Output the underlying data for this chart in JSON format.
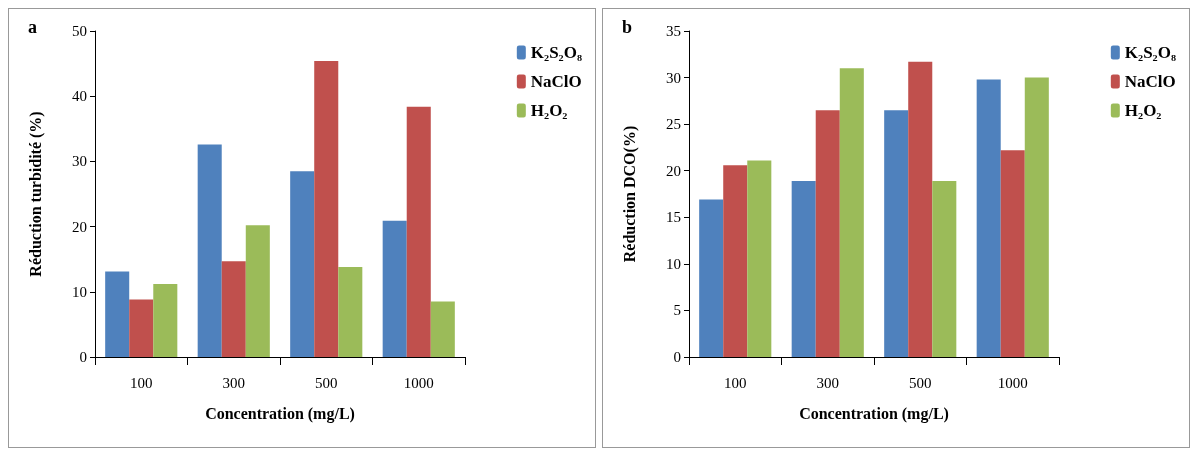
{
  "chart_data": [
    {
      "type": "bar",
      "title": "a",
      "xlabel": "Concentration (mg/L)",
      "ylabel": "Réduction turbidité (%)",
      "categories": [
        "100",
        "300",
        "500",
        "1000"
      ],
      "ylim": [
        0,
        50
      ],
      "yticks": [
        0,
        10,
        20,
        30,
        40,
        50
      ],
      "grid": false,
      "legend": "top right",
      "series": [
        {
          "name": "K₂S₂O₈",
          "color": "#4f81bd",
          "values": [
            13.1,
            32.6,
            28.5,
            20.9
          ]
        },
        {
          "name": "NaClO",
          "color": "#c0504d",
          "values": [
            8.8,
            14.7,
            45.4,
            38.4
          ]
        },
        {
          "name": "H₂O₂",
          "color": "#9bbb59",
          "values": [
            11.2,
            20.2,
            13.8,
            8.5
          ]
        }
      ]
    },
    {
      "type": "bar",
      "title": "b",
      "xlabel": "Concentration (mg/L)",
      "ylabel": "Réduction DCO(%)",
      "categories": [
        "100",
        "300",
        "500",
        "1000"
      ],
      "ylim": [
        0,
        35
      ],
      "yticks": [
        0,
        5,
        10,
        15,
        20,
        25,
        30,
        35
      ],
      "grid": false,
      "legend": "top right",
      "series": [
        {
          "name": "K₂S₂O₈",
          "color": "#4f81bd",
          "values": [
            16.9,
            18.9,
            26.5,
            29.8
          ]
        },
        {
          "name": "NaClO",
          "color": "#c0504d",
          "values": [
            20.6,
            26.5,
            31.7,
            22.2
          ]
        },
        {
          "name": "H₂O₂",
          "color": "#9bbb59",
          "values": [
            21.1,
            31.0,
            18.9,
            30.0
          ]
        }
      ]
    }
  ]
}
